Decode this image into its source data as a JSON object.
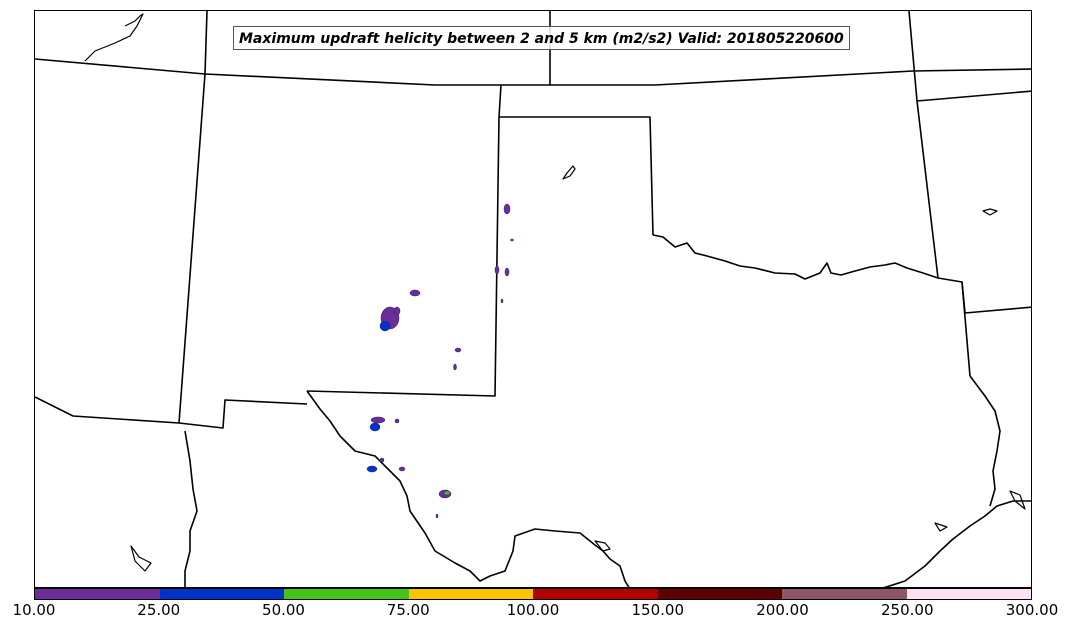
{
  "title": "Maximum updraft helicity between 2 and 5 km (m2/s2) Valid: 201805220600",
  "colorbar": {
    "labels": [
      "10.00",
      "25.00",
      "50.00",
      "75.00",
      "100.00",
      "150.00",
      "200.00",
      "250.00",
      "300.00"
    ],
    "colors": [
      "#6a2d99",
      "#0033cc",
      "#44c419",
      "#ffc400",
      "#b30000",
      "#5c0000",
      "#8c5868",
      "#fde3f5"
    ]
  }
}
